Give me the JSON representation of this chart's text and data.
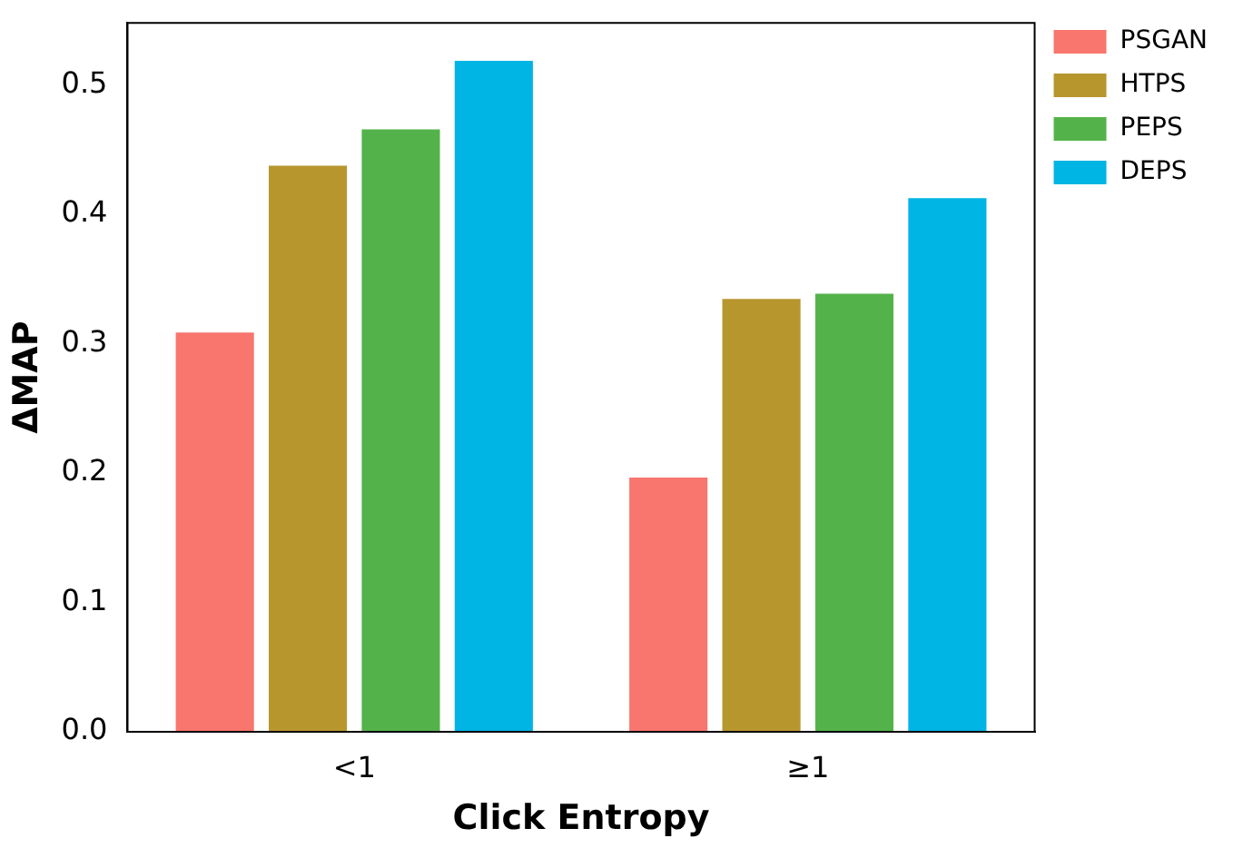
{
  "chart_data": {
    "type": "bar",
    "xlabel": "Click Entropy",
    "ylabel": "ΔMAP",
    "categories": [
      "<1",
      "≥1"
    ],
    "series": [
      {
        "name": "PSGAN",
        "color": "#f8766d",
        "values": [
          0.31,
          0.198
        ]
      },
      {
        "name": "HTPS",
        "color": "#b8962e",
        "values": [
          0.439,
          0.336
        ]
      },
      {
        "name": "PEPS",
        "color": "#53b34a",
        "values": [
          0.467,
          0.34
        ]
      },
      {
        "name": "DEPS",
        "color": "#00b4e4",
        "values": [
          0.52,
          0.414
        ]
      }
    ],
    "ylim": [
      0,
      0.548
    ],
    "yticks": [
      {
        "value": 0,
        "label": "0.0"
      },
      0.1,
      0.2,
      0.3,
      0.4,
      0.5
    ],
    "grid": false,
    "legend": "top right"
  }
}
